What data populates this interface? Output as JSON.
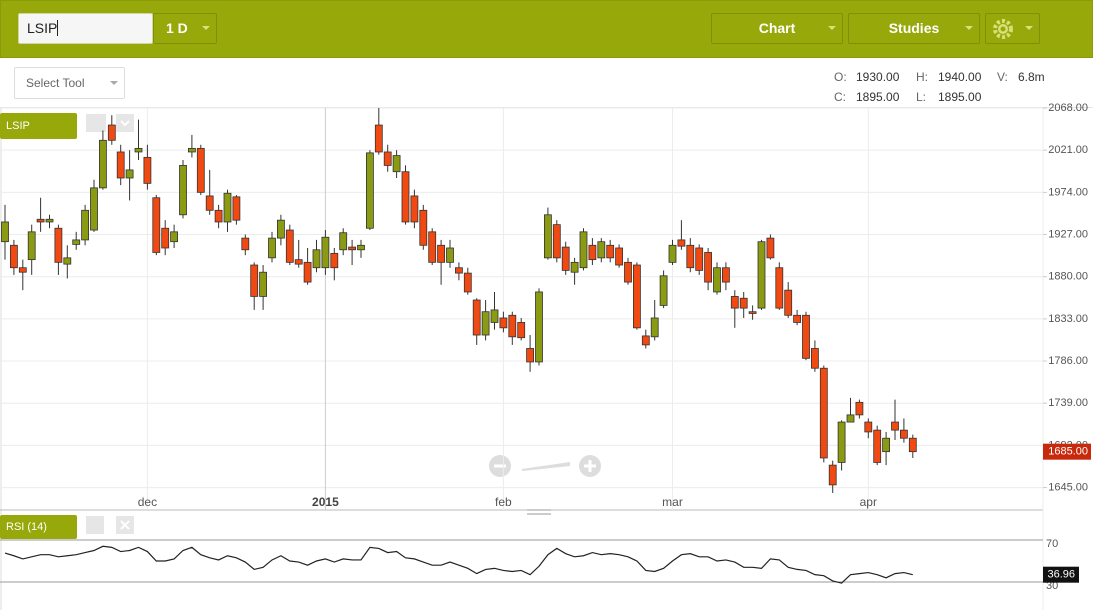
{
  "toolbar": {
    "symbol": "LSIP",
    "interval": "1 D",
    "chart_menu": "Chart",
    "studies_menu": "Studies",
    "select_tool": "Select Tool"
  },
  "ohlc": {
    "o_label": "O:",
    "o": "1930.00",
    "h_label": "H:",
    "h": "1940.00",
    "v_label": "V:",
    "v": "6.8m",
    "c_label": "C:",
    "c": "1895.00",
    "l_label": "L:",
    "l": "1895.00"
  },
  "chart_data": [
    {
      "type": "candlestick",
      "name": "LSIP",
      "categories": [
        null,
        null,
        null,
        null,
        null,
        null,
        null,
        null,
        null,
        null,
        null,
        null,
        null,
        null,
        null,
        null,
        "dec",
        null,
        null,
        null,
        null,
        null,
        null,
        null,
        null,
        null,
        null,
        null,
        null,
        null,
        null,
        null,
        null,
        null,
        null,
        null,
        "2015",
        null,
        null,
        null,
        null,
        null,
        null,
        null,
        null,
        null,
        null,
        null,
        null,
        null,
        null,
        null,
        null,
        null,
        null,
        null,
        "feb",
        null,
        null,
        null,
        null,
        null,
        null,
        null,
        null,
        null,
        null,
        null,
        null,
        null,
        null,
        null,
        null,
        null,
        null,
        "mar",
        null,
        null,
        null,
        null,
        null,
        null,
        null,
        null,
        null,
        null,
        null,
        null,
        null,
        null,
        null,
        null,
        null,
        null,
        null,
        null,
        null,
        "apr",
        null,
        null,
        null,
        null,
        null
      ],
      "open": [
        1919,
        1915,
        1890,
        1899,
        1944,
        1941,
        1934,
        1894,
        1916,
        1921,
        1932,
        1979,
        2049,
        2019,
        1990,
        2019,
        2013,
        1968,
        1934,
        1919,
        1949,
        2019,
        2023,
        1970,
        1954,
        1941,
        1969,
        1923,
        1893,
        1858,
        1901,
        1923,
        1932,
        1899,
        1896,
        1890,
        1890,
        1906,
        1910,
        1913,
        1910,
        1934,
        2049,
        2019,
        1997,
        1997,
        1970,
        1954,
        1930,
        1915,
        1896,
        1890,
        1884,
        1854,
        1815,
        1829,
        1834,
        1837,
        1829,
        1800,
        1785,
        1901,
        1938,
        1913,
        1885,
        1890,
        1915,
        1901,
        1915,
        1912,
        1896,
        1893,
        1814,
        1813,
        1848,
        1896,
        1921,
        1915,
        1912,
        1907,
        1863,
        1890,
        1858,
        1856,
        1841,
        1845,
        1923,
        1890,
        1865,
        1837,
        1837,
        1800,
        1778,
        1670,
        1673,
        1718,
        1740,
        1718,
        1709,
        1685,
        1718,
        1709,
        1700
      ],
      "high": [
        1960,
        1921,
        1899,
        1938,
        1968,
        1949,
        1938,
        1915,
        1930,
        1960,
        1988,
        2043,
        2060,
        2027,
        2021,
        2055,
        2027,
        1971,
        1943,
        1938,
        2010,
        2038,
        2027,
        1999,
        1960,
        1977,
        1971,
        1927,
        1896,
        1893,
        1930,
        1949,
        1938,
        1921,
        1912,
        1921,
        1932,
        1912,
        1934,
        1921,
        1921,
        2021,
        2068,
        2027,
        2021,
        2004,
        1977,
        1960,
        1934,
        1921,
        1921,
        1896,
        1890,
        1856,
        1854,
        1863,
        1841,
        1841,
        1834,
        1815,
        1867,
        1957,
        1943,
        1919,
        1901,
        1934,
        1923,
        1923,
        1921,
        1916,
        1901,
        1896,
        1821,
        1854,
        1887,
        1921,
        1943,
        1923,
        1916,
        1912,
        1896,
        1896,
        1865,
        1863,
        1848,
        1921,
        1927,
        1896,
        1874,
        1843,
        1841,
        1809,
        1781,
        1675,
        1720,
        1745,
        1743,
        1722,
        1714,
        1707,
        1743,
        1722,
        1704
      ],
      "low": [
        1899,
        1882,
        1865,
        1882,
        1930,
        1934,
        1882,
        1878,
        1910,
        1915,
        1930,
        1977,
        2027,
        1982,
        1965,
        2010,
        1977,
        1904,
        1904,
        1912,
        1945,
        2013,
        1971,
        1949,
        1934,
        1930,
        1938,
        1904,
        1843,
        1843,
        1896,
        1915,
        1893,
        1890,
        1871,
        1885,
        1882,
        1876,
        1904,
        1893,
        1901,
        1932,
        2016,
        1997,
        1990,
        1938,
        1934,
        1910,
        1893,
        1871,
        1890,
        1876,
        1860,
        1804,
        1809,
        1821,
        1818,
        1804,
        1809,
        1774,
        1781,
        1899,
        1896,
        1882,
        1871,
        1887,
        1893,
        1896,
        1896,
        1890,
        1871,
        1821,
        1800,
        1809,
        1845,
        1893,
        1910,
        1885,
        1882,
        1865,
        1860,
        1865,
        1823,
        1834,
        1832,
        1843,
        1899,
        1843,
        1834,
        1826,
        1787,
        1774,
        1673,
        1639,
        1664,
        1718,
        1722,
        1700,
        1670,
        1670,
        1698,
        1695,
        1678
      ],
      "close": [
        1941,
        1890,
        1885,
        1930,
        1941,
        1944,
        1896,
        1901,
        1921,
        1954,
        1979,
        2032,
        2032,
        1990,
        1999,
        2023,
        1984,
        1907,
        1912,
        1930,
        2004,
        2023,
        1974,
        1954,
        1941,
        1973,
        1943,
        1910,
        1858,
        1885,
        1923,
        1943,
        1896,
        1894,
        1874,
        1910,
        1924,
        1890,
        1929,
        1910,
        1915,
        2018,
        2019,
        2004,
        2015,
        1941,
        1941,
        1915,
        1896,
        1896,
        1912,
        1884,
        1863,
        1815,
        1841,
        1843,
        1823,
        1813,
        1812,
        1785,
        1863,
        1949,
        1901,
        1887,
        1896,
        1930,
        1899,
        1919,
        1901,
        1893,
        1874,
        1823,
        1804,
        1834,
        1881,
        1915,
        1914,
        1890,
        1887,
        1874,
        1890,
        1874,
        1845,
        1845,
        1839,
        1919,
        1901,
        1845,
        1837,
        1829,
        1789,
        1778,
        1678,
        1648,
        1718,
        1726,
        1726,
        1707,
        1673,
        1700,
        1709,
        1700,
        1685
      ],
      "up_color": "#8a9a12",
      "down_color": "#f04a12",
      "ylim": [
        1620,
        2068
      ],
      "yticks": [
        {
          "value": 1645,
          "label": "1645.00"
        },
        {
          "value": 1692,
          "label": "1692.00"
        },
        {
          "value": 1739,
          "label": "1739.00"
        },
        {
          "value": 1786,
          "label": "1786.00"
        },
        {
          "value": 1833,
          "label": "1833.00"
        },
        {
          "value": 1880,
          "label": "1880.00"
        },
        {
          "value": 1927,
          "label": "1927.00"
        },
        {
          "value": 1974,
          "label": "1974.00"
        },
        {
          "value": 2021,
          "label": "2021.00"
        },
        {
          "value": 2068,
          "label": "2068.00"
        }
      ],
      "grid": true,
      "price_label": "1685.00"
    },
    {
      "type": "line",
      "name": "RSI (14)",
      "color": "#222222",
      "values": [
        57.6,
        55,
        52,
        54,
        56,
        56,
        54,
        55,
        56,
        58,
        60,
        64,
        63,
        59,
        60,
        63,
        59,
        50,
        50,
        52,
        60,
        63,
        56,
        53,
        51,
        55,
        53,
        49,
        42,
        44,
        51,
        55,
        50,
        49,
        46,
        50,
        52,
        49,
        52,
        51,
        51,
        63,
        62,
        58,
        59,
        53,
        52,
        49,
        46,
        46,
        49,
        46,
        43,
        38,
        42,
        43,
        41,
        40,
        41,
        37,
        45,
        56,
        62,
        57,
        54,
        55,
        58,
        56,
        57,
        56,
        54,
        50,
        41,
        40,
        43,
        50,
        56,
        57,
        54,
        54,
        50,
        51,
        49,
        44,
        44,
        43,
        52,
        51,
        44,
        42,
        41,
        37,
        36,
        31,
        29,
        37,
        38,
        39,
        37,
        34,
        38,
        39,
        36.96
      ],
      "ylim": [
        30,
        70
      ],
      "yticks": [
        70,
        30
      ],
      "value_label": "36.96"
    }
  ]
}
